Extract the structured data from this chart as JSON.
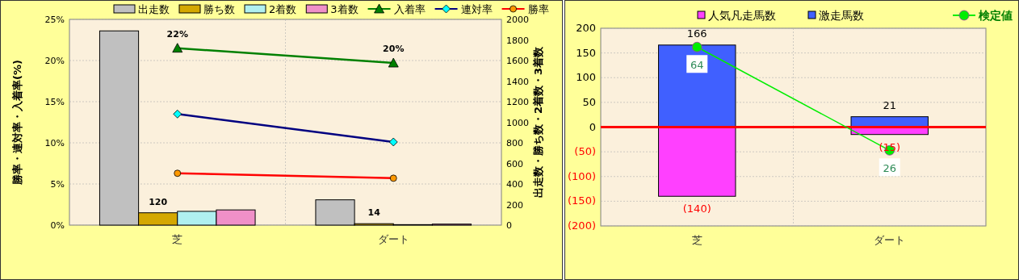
{
  "chart_data": [
    {
      "type": "bar",
      "ylabel": "勝率・連対率・入着率(%)",
      "y2label": "出走数・勝ち数・2着数・3着数",
      "categories": [
        "芝",
        "ダート"
      ],
      "ylim": [
        0,
        25
      ],
      "yticks": [
        {
          "value": 0,
          "label": "0%"
        },
        {
          "value": 5,
          "label": "5%"
        },
        {
          "value": 10,
          "label": "10%"
        },
        {
          "value": 15,
          "label": "15%"
        },
        {
          "value": 20,
          "label": "20%"
        },
        {
          "value": 25,
          "label": "25%"
        }
      ],
      "y2lim": [
        0,
        2000
      ],
      "y2ticks": [
        0,
        200,
        400,
        600,
        800,
        1000,
        1200,
        1400,
        1600,
        1800,
        2000
      ],
      "grid": true,
      "legend": "top",
      "series": [
        {
          "name": "出走数",
          "axis": "y2",
          "color": "#c0c0c0",
          "values": [
            1888,
            246
          ]
        },
        {
          "name": "勝ち数",
          "axis": "y2",
          "color": "#d4a800",
          "values": [
            120,
            14
          ],
          "value_labels": [
            "120",
            "14"
          ]
        },
        {
          "name": "2着数",
          "axis": "y2",
          "color": "#b0f0f0",
          "values": [
            134,
            5
          ]
        },
        {
          "name": "3着数",
          "axis": "y2",
          "color": "#f090c8",
          "values": [
            148,
            10
          ]
        },
        {
          "name": "入着率",
          "type": "line",
          "axis": "y",
          "color": "#008000",
          "marker": "triangle",
          "values": [
            21.5,
            19.7
          ],
          "value_labels": [
            "22%",
            "20%"
          ]
        },
        {
          "name": "連対率",
          "type": "line",
          "axis": "y",
          "color": "#000080",
          "marker": "diamond",
          "values": [
            13.5,
            10.1
          ]
        },
        {
          "name": "勝率",
          "type": "line",
          "axis": "y",
          "color": "#ff0000",
          "marker": "circle",
          "values": [
            6.3,
            5.7
          ]
        }
      ]
    },
    {
      "type": "bar",
      "stacked": true,
      "categories": [
        "芝",
        "ダート"
      ],
      "ylim": [
        -200,
        200
      ],
      "yticks": [
        {
          "value": -200,
          "label": "(200)"
        },
        {
          "value": -150,
          "label": "(150)"
        },
        {
          "value": -100,
          "label": "(100)"
        },
        {
          "value": -50,
          "label": "(50)"
        },
        0,
        50,
        100,
        150,
        200
      ],
      "grid": true,
      "legend": "top",
      "ref_lines": [
        {
          "axis": "y",
          "value": 0,
          "color": "#ff0000"
        }
      ],
      "series": [
        {
          "name": "人気凡走馬数",
          "color": "#ff40ff",
          "values": [
            -140,
            -15
          ],
          "value_labels": [
            "(140)",
            "(15)"
          ]
        },
        {
          "name": "激走馬数",
          "color": "#4060ff",
          "values": [
            166,
            21
          ],
          "value_labels": [
            "166",
            "21"
          ]
        },
        {
          "name": "検定値",
          "type": "line",
          "color": "#00ee00",
          "marker": "circle",
          "values": [
            162,
            -47
          ]
        }
      ],
      "annotations": [
        {
          "text": "64",
          "x": "芝",
          "y": 162
        },
        {
          "text": "26",
          "x": "ダート",
          "y": -47
        }
      ]
    }
  ]
}
